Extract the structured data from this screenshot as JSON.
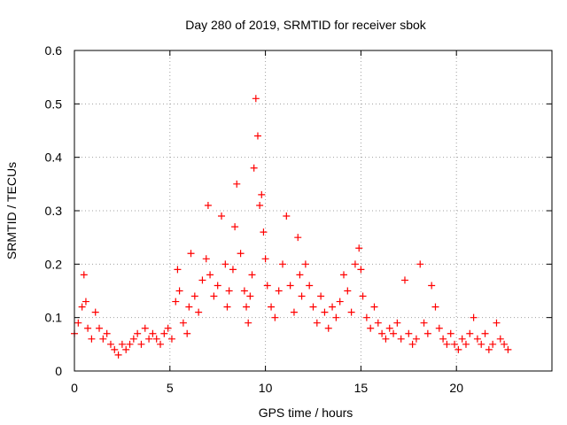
{
  "chart_data": {
    "type": "scatter",
    "title": "Day 280 of 2019, SRMTID for receiver sbok",
    "xlabel": "GPS time / hours",
    "ylabel": "SRMTID / TECUs",
    "xlim": [
      0,
      25
    ],
    "ylim": [
      0,
      0.6
    ],
    "x_ticks": [
      0,
      5,
      10,
      15,
      20
    ],
    "x_tick_labels": [
      "0",
      "5",
      "10",
      "15",
      "20"
    ],
    "y_ticks": [
      0,
      0.1,
      0.2,
      0.3,
      0.4,
      0.5,
      0.6
    ],
    "y_tick_labels": [
      "0",
      "0.1",
      "0.2",
      "0.3",
      "0.4",
      "0.5",
      "0.6"
    ],
    "grid": true,
    "marker": "+",
    "series": [
      {
        "name": "SRMTID",
        "color": "#ff0000",
        "x": [
          0.0,
          0.2,
          0.4,
          0.5,
          0.6,
          0.7,
          0.9,
          1.1,
          1.3,
          1.5,
          1.7,
          1.9,
          2.1,
          2.3,
          2.5,
          2.7,
          2.9,
          3.1,
          3.3,
          3.5,
          3.7,
          3.9,
          4.1,
          4.3,
          4.5,
          4.7,
          4.9,
          5.1,
          5.3,
          5.4,
          5.5,
          5.7,
          5.9,
          6.0,
          6.1,
          6.3,
          6.5,
          6.7,
          6.9,
          7.0,
          7.1,
          7.3,
          7.5,
          7.7,
          7.9,
          8.0,
          8.1,
          8.3,
          8.4,
          8.5,
          8.7,
          8.9,
          9.0,
          9.1,
          9.2,
          9.3,
          9.4,
          9.5,
          9.6,
          9.7,
          9.8,
          9.9,
          10.0,
          10.1,
          10.3,
          10.5,
          10.7,
          10.9,
          11.1,
          11.3,
          11.5,
          11.7,
          11.8,
          11.9,
          12.1,
          12.3,
          12.5,
          12.7,
          12.9,
          13.1,
          13.3,
          13.5,
          13.7,
          13.9,
          14.1,
          14.3,
          14.5,
          14.7,
          14.9,
          15.0,
          15.1,
          15.3,
          15.5,
          15.7,
          15.9,
          16.1,
          16.3,
          16.5,
          16.7,
          16.9,
          17.1,
          17.3,
          17.5,
          17.7,
          17.9,
          18.1,
          18.3,
          18.5,
          18.7,
          18.9,
          19.1,
          19.3,
          19.5,
          19.7,
          19.9,
          20.1,
          20.3,
          20.5,
          20.7,
          20.9,
          21.1,
          21.3,
          21.5,
          21.7,
          21.9,
          22.1,
          22.3,
          22.5,
          22.7
        ],
        "y": [
          0.07,
          0.09,
          0.12,
          0.18,
          0.13,
          0.08,
          0.06,
          0.11,
          0.08,
          0.06,
          0.07,
          0.05,
          0.04,
          0.03,
          0.05,
          0.04,
          0.05,
          0.06,
          0.07,
          0.05,
          0.08,
          0.06,
          0.07,
          0.06,
          0.05,
          0.07,
          0.08,
          0.06,
          0.13,
          0.19,
          0.15,
          0.09,
          0.07,
          0.12,
          0.22,
          0.14,
          0.11,
          0.17,
          0.21,
          0.31,
          0.18,
          0.14,
          0.16,
          0.29,
          0.2,
          0.12,
          0.15,
          0.19,
          0.27,
          0.35,
          0.22,
          0.15,
          0.12,
          0.09,
          0.14,
          0.18,
          0.38,
          0.51,
          0.44,
          0.31,
          0.33,
          0.26,
          0.21,
          0.16,
          0.12,
          0.1,
          0.15,
          0.2,
          0.29,
          0.16,
          0.11,
          0.25,
          0.18,
          0.14,
          0.2,
          0.16,
          0.12,
          0.09,
          0.14,
          0.11,
          0.08,
          0.12,
          0.1,
          0.13,
          0.18,
          0.15,
          0.11,
          0.2,
          0.23,
          0.19,
          0.14,
          0.1,
          0.08,
          0.12,
          0.09,
          0.07,
          0.06,
          0.08,
          0.07,
          0.09,
          0.06,
          0.17,
          0.07,
          0.05,
          0.06,
          0.2,
          0.09,
          0.07,
          0.16,
          0.12,
          0.08,
          0.06,
          0.05,
          0.07,
          0.05,
          0.04,
          0.06,
          0.05,
          0.07,
          0.1,
          0.06,
          0.05,
          0.07,
          0.04,
          0.05,
          0.09,
          0.06,
          0.05,
          0.04
        ]
      }
    ]
  }
}
